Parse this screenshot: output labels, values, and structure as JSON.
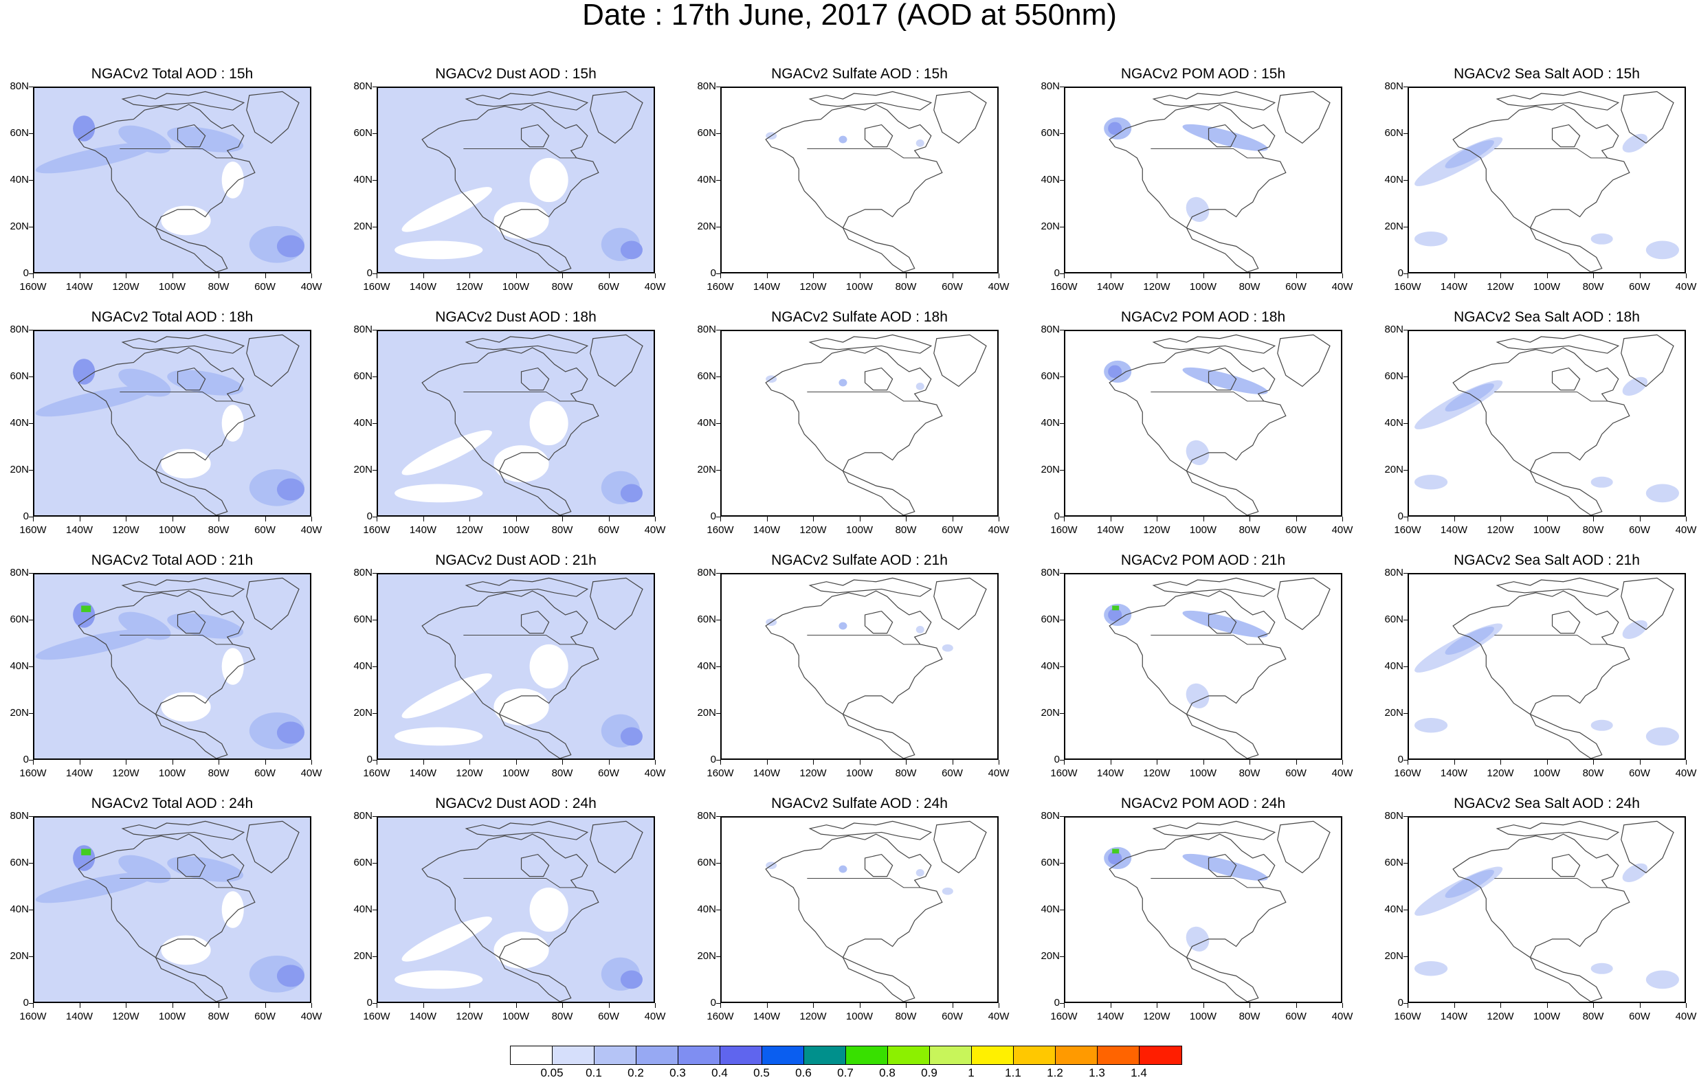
{
  "title": "Date : 17th June, 2017 (AOD at 550nm)",
  "columns": [
    {
      "prefix": "NGACv2 Total AOD : ",
      "kind": "total"
    },
    {
      "prefix": "NGACv2 Dust AOD : ",
      "kind": "dust"
    },
    {
      "prefix": "NGACv2 Sulfate AOD : ",
      "kind": "sulfate"
    },
    {
      "prefix": "NGACv2 POM AOD : ",
      "kind": "pom"
    },
    {
      "prefix": "NGACv2 Sea Salt AOD : ",
      "kind": "seasalt"
    }
  ],
  "panel_titles": [
    [
      "NGACv2 Total AOD : 15h",
      "NGACv2 Dust AOD : 15h",
      "NGACv2 Sulfate AOD : 15h",
      "NGACv2 POM AOD : 15h",
      "NGACv2 Sea Salt AOD : 15h"
    ],
    [
      "NGACv2 Total AOD : 18h",
      "NGACv2 Dust AOD : 18h",
      "NGACv2 Sulfate AOD : 18h",
      "NGACv2 POM AOD : 18h",
      "NGACv2 Sea Salt AOD : 18h"
    ],
    [
      "NGACv2 Total AOD : 21h",
      "NGACv2 Dust AOD : 21h",
      "NGACv2 Sulfate AOD : 21h",
      "NGACv2 POM AOD : 21h",
      "NGACv2 Sea Salt AOD : 21h"
    ],
    [
      "NGACv2 Total AOD : 24h",
      "NGACv2 Dust AOD : 24h",
      "NGACv2 Sulfate AOD : 24h",
      "NGACv2 POM AOD : 24h",
      "NGACv2 Sea Salt  AOD : 24h"
    ]
  ],
  "lat_labels": [
    "80N",
    "60N",
    "40N",
    "20N",
    "0"
  ],
  "lon_labels": [
    "160W",
    "140W",
    "120W",
    "100W",
    "80W",
    "60W",
    "40W"
  ],
  "colorbar": {
    "labels": [
      "0.05",
      "0.1",
      "0.2",
      "0.3",
      "0.4",
      "0.5",
      "0.6",
      "0.7",
      "0.8",
      "0.9",
      "1",
      "1.1",
      "1.2",
      "1.3",
      "1.4"
    ],
    "colors": [
      "#ffffff",
      "#d6dffb",
      "#b5c4f6",
      "#97a9f3",
      "#7f8ef2",
      "#5f65ee",
      "#0a5ef0",
      "#00908c",
      "#38e000",
      "#8cf000",
      "#c8f55a",
      "#fff000",
      "#ffc800",
      "#ff9a00",
      "#ff6400",
      "#ff1e00"
    ]
  },
  "map_colors": {
    "base": "#cdd7f8",
    "mid": "#aebff5",
    "high": "#8a9bf0",
    "max": "#5f67ec",
    "green": "#44cc22",
    "coast": "#444444"
  }
}
